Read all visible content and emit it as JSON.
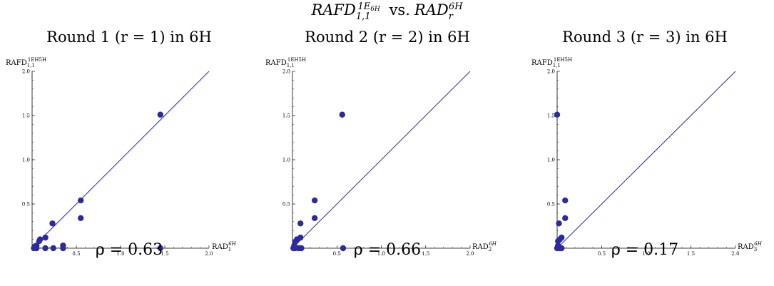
{
  "title": {
    "main": "RAFD",
    "sub": "1,1",
    "sup": "1E",
    "sup_sub": "6H",
    "vs": "vs.",
    "right": "RAD",
    "right_sub": "r",
    "right_sup": "6H"
  },
  "chart_data": [
    {
      "type": "scatter",
      "title": "Round 1 (r = 1) in 6H",
      "ylabel": {
        "base": "RAFD",
        "sub": "1,1",
        "sup": "1EH5H"
      },
      "xlabel": {
        "base": "RAD",
        "sub": "1",
        "sup": "6H"
      },
      "xlim": [
        0,
        2.0
      ],
      "ylim": [
        0,
        2.0
      ],
      "xticks": [
        "0.5",
        "1.0",
        "1.5",
        "2.0"
      ],
      "yticks": [
        "0.5",
        "1.0",
        "1.5",
        "2.0"
      ],
      "reference_line": "y = x",
      "points": [
        [
          0.02,
          0.0
        ],
        [
          0.03,
          0.02
        ],
        [
          0.05,
          0.03
        ],
        [
          0.05,
          0.0
        ],
        [
          0.08,
          0.08
        ],
        [
          0.09,
          0.1
        ],
        [
          0.15,
          0.12
        ],
        [
          0.15,
          0.0
        ],
        [
          0.23,
          0.28
        ],
        [
          0.24,
          0.0
        ],
        [
          0.35,
          0.03
        ],
        [
          0.35,
          0.0
        ],
        [
          0.55,
          0.54
        ],
        [
          0.55,
          0.34
        ],
        [
          1.45,
          1.51
        ],
        [
          1.45,
          0.0
        ]
      ],
      "rho": "ρ = 0.63",
      "color": "#2b2ba0"
    },
    {
      "type": "scatter",
      "title": "Round 2 (r = 2) in 6H",
      "ylabel": {
        "base": "RAFD",
        "sub": "1,1",
        "sup": "1EH5H"
      },
      "xlabel": {
        "base": "RAD",
        "sub": "2",
        "sup": "6H"
      },
      "xlim": [
        0,
        2.0
      ],
      "ylim": [
        0,
        2.0
      ],
      "xticks": [
        "0.5",
        "1.0",
        "1.5",
        "2.0"
      ],
      "yticks": [
        "0.5",
        "1.0",
        "1.5",
        "2.0"
      ],
      "reference_line": "y = x",
      "points": [
        [
          0.01,
          0.0
        ],
        [
          0.02,
          0.03
        ],
        [
          0.03,
          0.07
        ],
        [
          0.03,
          0.0
        ],
        [
          0.05,
          0.1
        ],
        [
          0.07,
          0.0
        ],
        [
          0.09,
          0.12
        ],
        [
          0.09,
          0.28
        ],
        [
          0.1,
          0.0
        ],
        [
          0.25,
          0.54
        ],
        [
          0.25,
          0.34
        ],
        [
          0.56,
          1.51
        ],
        [
          0.57,
          0.0
        ]
      ],
      "rho": "ρ = 0.66",
      "color": "#2b2ba0"
    },
    {
      "type": "scatter",
      "title": "Round 3 (r = 3) in 6H",
      "ylabel": {
        "base": "RAFD",
        "sub": "1,1",
        "sup": "1EH5H"
      },
      "xlabel": {
        "base": "RAD",
        "sub": "3",
        "sup": "6H"
      },
      "xlim": [
        0,
        2.0
      ],
      "ylim": [
        0,
        2.0
      ],
      "xticks": [
        "0.5",
        "1.0",
        "1.5",
        "2.0"
      ],
      "yticks": [
        "0.5",
        "1.0",
        "1.5",
        "2.0"
      ],
      "reference_line": "y = x",
      "points": [
        [
          0.0,
          1.51
        ],
        [
          0.0,
          0.0
        ],
        [
          0.01,
          0.03
        ],
        [
          0.01,
          0.08
        ],
        [
          0.02,
          0.28
        ],
        [
          0.03,
          0.1
        ],
        [
          0.03,
          0.0
        ],
        [
          0.05,
          0.12
        ],
        [
          0.05,
          0.0
        ],
        [
          0.09,
          0.54
        ],
        [
          0.09,
          0.34
        ]
      ],
      "rho": "ρ = 0.17",
      "color": "#2b2ba0"
    }
  ]
}
